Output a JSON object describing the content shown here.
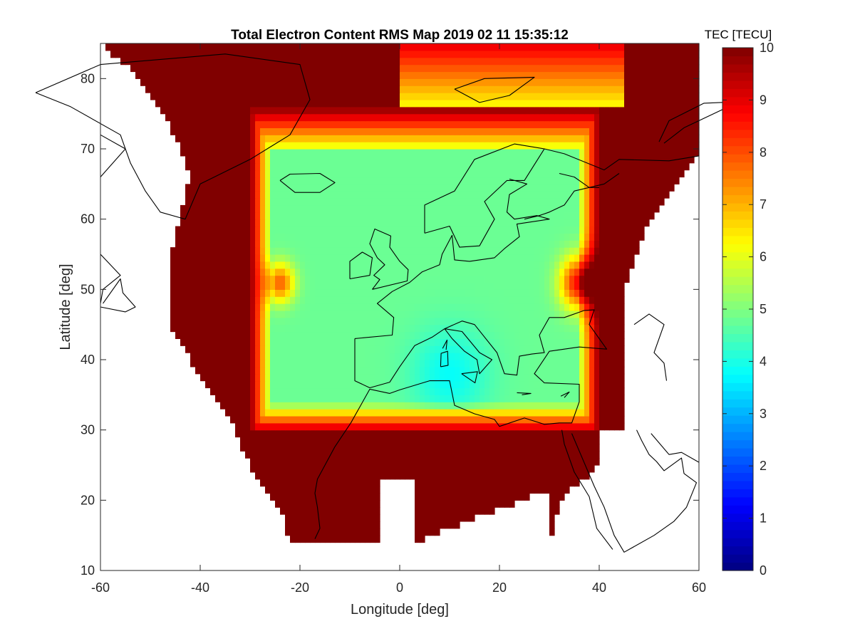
{
  "chart_data": {
    "type": "heatmap",
    "title": "Total Electron Content RMS Map 2019 02 11 15:35:12",
    "xlabel": "Longitude [deg]",
    "ylabel": "Latitude [deg]",
    "xlim": [
      -60,
      60
    ],
    "ylim": [
      10,
      85
    ],
    "x_ticks": [
      -60,
      -40,
      -20,
      0,
      20,
      40,
      60
    ],
    "y_ticks": [
      10,
      20,
      30,
      40,
      50,
      60,
      70,
      80
    ],
    "colorbar": {
      "title": "TEC [TECU]",
      "colormap": "jet",
      "range": [
        0,
        10
      ],
      "ticks": [
        0,
        1,
        2,
        3,
        4,
        5,
        6,
        7,
        8,
        9,
        10
      ],
      "location": "right"
    },
    "grid": false,
    "cell_size_deg": 1,
    "background_value": 10,
    "core_value": 4.8,
    "description_regions": {
      "saturated_hull_value": 10,
      "central_plateau_value": 4.8,
      "minimum_near": {
        "lon": 10,
        "lat": 38,
        "value": 3.8
      }
    }
  },
  "colors": {
    "axis": "#262626",
    "coastline": "#000000",
    "background": "#ffffff"
  }
}
